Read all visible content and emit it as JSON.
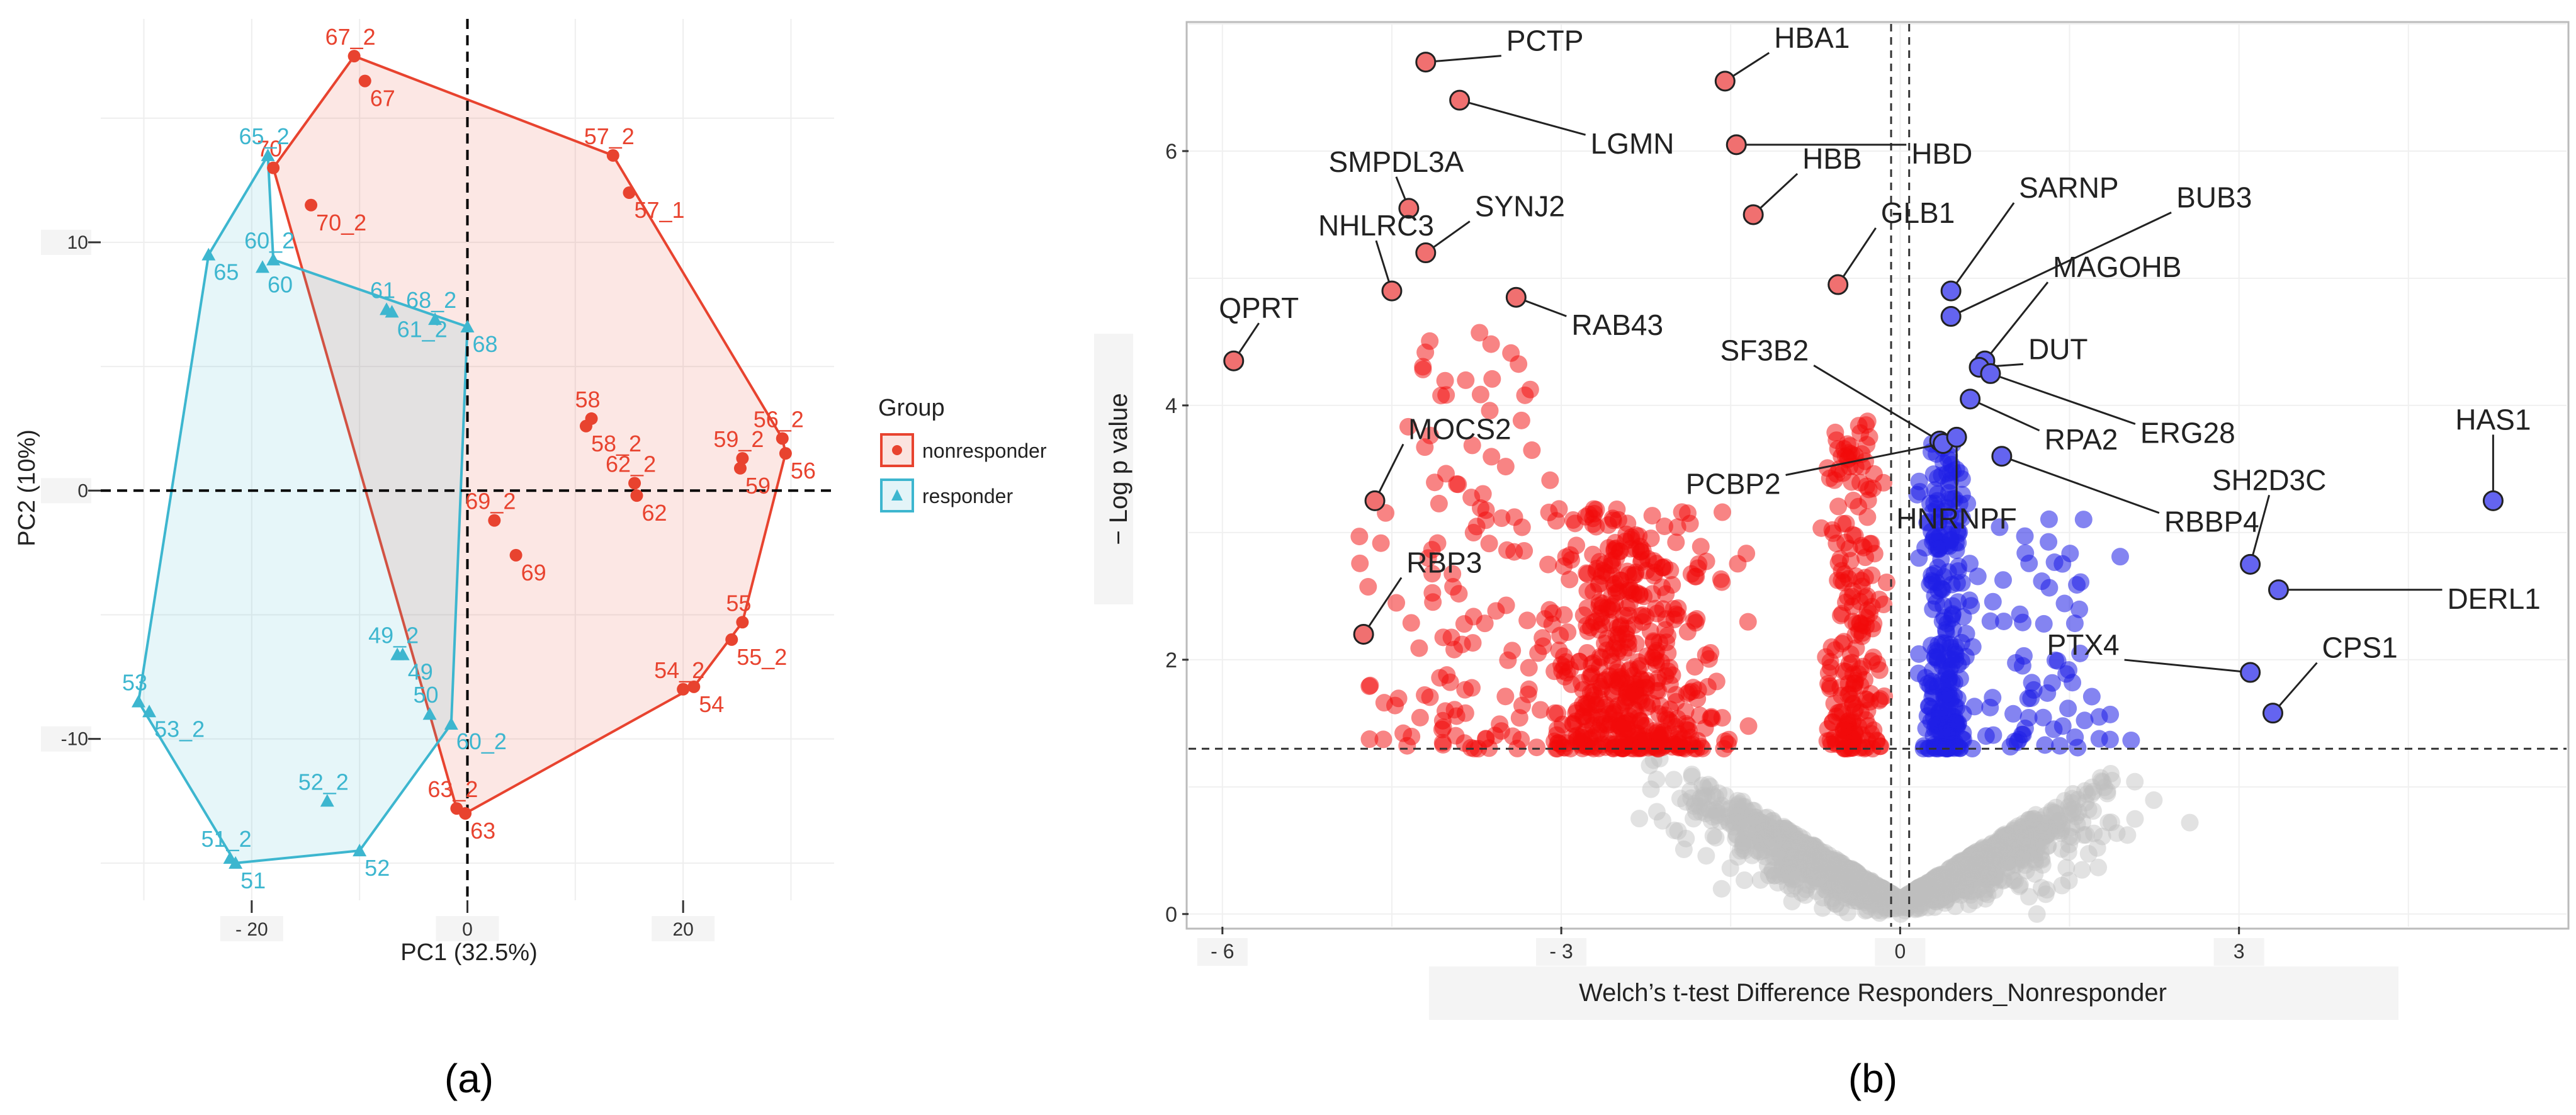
{
  "chart_data": [
    {
      "type": "scatter",
      "panel_label": "(a)",
      "xlabel": "PC1 (32.5%)",
      "ylabel": "PC2 (10%)",
      "xlim": [
        -34,
        34
      ],
      "ylim": [
        -16.5,
        19
      ],
      "x_ticks": [
        -20,
        0,
        20
      ],
      "y_ticks": [
        -10,
        0,
        10
      ],
      "x_tick_labels": [
        "- 20",
        "0",
        "20"
      ],
      "y_tick_labels": [
        "-10",
        "0",
        "10"
      ],
      "grid": true,
      "reference_lines": {
        "x": 0,
        "y": 0
      },
      "legend": {
        "title": "Group",
        "placement": "right",
        "entries": [
          "nonresponder",
          "responder"
        ]
      },
      "series": [
        {
          "name": "nonresponder",
          "color": "#E8432F",
          "marker": "circle",
          "points": [
            {
              "label": "67_2",
              "x": -10.5,
              "y": 17.5
            },
            {
              "label": "67",
              "x": -9.5,
              "y": 16.5
            },
            {
              "label": "70",
              "x": -18,
              "y": 13
            },
            {
              "label": "70_2",
              "x": -14.5,
              "y": 11.5
            },
            {
              "label": "57_2",
              "x": 13.5,
              "y": 13.5
            },
            {
              "label": "57_1",
              "x": 15,
              "y": 12
            },
            {
              "label": "58",
              "x": 11.5,
              "y": 2.9
            },
            {
              "label": "58_2",
              "x": 11,
              "y": 2.6
            },
            {
              "label": "62_2",
              "x": 15.5,
              "y": 0.3
            },
            {
              "label": "62",
              "x": 15.7,
              "y": -0.2
            },
            {
              "label": "59_2",
              "x": 25.5,
              "y": 1.3
            },
            {
              "label": "59",
              "x": 25.3,
              "y": 0.9
            },
            {
              "label": "56_2",
              "x": 29.2,
              "y": 2.1
            },
            {
              "label": "56",
              "x": 29.5,
              "y": 1.5
            },
            {
              "label": "69_2",
              "x": 2.5,
              "y": -1.2
            },
            {
              "label": "69",
              "x": 4.5,
              "y": -2.6
            },
            {
              "label": "55",
              "x": 25.5,
              "y": -5.3
            },
            {
              "label": "55_2",
              "x": 24.5,
              "y": -6.0
            },
            {
              "label": "54_2",
              "x": 20,
              "y": -8.0
            },
            {
              "label": "54",
              "x": 21,
              "y": -7.9
            },
            {
              "label": "63_2",
              "x": -1,
              "y": -12.8
            },
            {
              "label": "63",
              "x": -0.2,
              "y": -13.0
            }
          ]
        },
        {
          "name": "responder",
          "color": "#3DB6CF",
          "marker": "triangle",
          "points": [
            {
              "label": "65_2",
              "x": -18.5,
              "y": 13.5
            },
            {
              "label": "65",
              "x": -24,
              "y": 9.5
            },
            {
              "label": "60_2",
              "x": -18,
              "y": 9.3
            },
            {
              "label": "60",
              "x": -19,
              "y": 9.0
            },
            {
              "label": "61",
              "x": -7.5,
              "y": 7.3
            },
            {
              "label": "61_2",
              "x": -7,
              "y": 7.2
            },
            {
              "label": "68_2",
              "x": -3,
              "y": 6.9
            },
            {
              "label": "68",
              "x": 0,
              "y": 6.6
            },
            {
              "label": "49_2",
              "x": -6.5,
              "y": -6.6
            },
            {
              "label": "49",
              "x": -6,
              "y": -6.6
            },
            {
              "label": "50",
              "x": -3.5,
              "y": -9.0
            },
            {
              "label": "60_2",
              "x": -1.5,
              "y": -9.4
            },
            {
              "label": "53",
              "x": -30.5,
              "y": -8.5
            },
            {
              "label": "53_2",
              "x": -29.5,
              "y": -8.9
            },
            {
              "label": "52_2",
              "x": -13,
              "y": -12.5
            },
            {
              "label": "52",
              "x": -10,
              "y": -14.5
            },
            {
              "label": "51_2",
              "x": -22,
              "y": -14.8
            },
            {
              "label": "51",
              "x": -21.5,
              "y": -15.0
            }
          ]
        }
      ],
      "hulls": {
        "nonresponder": [
          [
            -10.5,
            17.5
          ],
          [
            13.5,
            13.5
          ],
          [
            29.2,
            2.1
          ],
          [
            29.5,
            1.5
          ],
          [
            25.5,
            -5.3
          ],
          [
            21,
            -7.9
          ],
          [
            -0.2,
            -13.0
          ],
          [
            -1,
            -12.8
          ],
          [
            -18,
            13
          ]
        ],
        "responder": [
          [
            -24,
            9.5
          ],
          [
            -18.5,
            13.5
          ],
          [
            -18,
            9.3
          ],
          [
            0,
            6.6
          ],
          [
            -1.5,
            -9.4
          ],
          [
            -10,
            -14.5
          ],
          [
            -21.5,
            -15.0
          ],
          [
            -30.5,
            -8.5
          ]
        ]
      },
      "colors": {
        "nonresponder": "#E8432F",
        "responder": "#3DB6CF"
      }
    },
    {
      "type": "scatter",
      "panel_label": "(b)",
      "xlabel": "Welch’s t-test Difference Responders_Nonresponder",
      "ylabel": "− Log p value",
      "xlim": [
        -6.3,
        5.9
      ],
      "ylim": [
        -0.1,
        7.0
      ],
      "x_ticks": [
        -6,
        -3,
        0,
        3
      ],
      "y_ticks": [
        0,
        2,
        4,
        6
      ],
      "x_tick_labels": [
        "- 6",
        "- 3",
        "0",
        "3"
      ],
      "y_tick_labels": [
        "0",
        "2",
        "4",
        "6"
      ],
      "grid": true,
      "reference_lines": {
        "x": [
          -0.08,
          0.08
        ],
        "y": 1.3
      },
      "colors": {
        "down": "#F20A0A",
        "up": "#1F1FE6",
        "ns": "#BEBEBE"
      },
      "labeled_genes": [
        {
          "label": "PCTP",
          "x": -4.2,
          "y": 6.7,
          "group": "down"
        },
        {
          "label": "LGMN",
          "x": -3.9,
          "y": 6.4,
          "group": "down"
        },
        {
          "label": "SMPDL3A",
          "x": -4.35,
          "y": 5.55,
          "group": "down"
        },
        {
          "label": "SYNJ2",
          "x": -4.2,
          "y": 5.2,
          "group": "down"
        },
        {
          "label": "NHLRC3",
          "x": -4.5,
          "y": 4.9,
          "group": "down"
        },
        {
          "label": "RAB43",
          "x": -3.4,
          "y": 4.85,
          "group": "down"
        },
        {
          "label": "QPRT",
          "x": -5.9,
          "y": 4.35,
          "group": "down"
        },
        {
          "label": "MOCS2",
          "x": -4.65,
          "y": 3.25,
          "group": "down"
        },
        {
          "label": "RBP3",
          "x": -4.75,
          "y": 2.2,
          "group": "down"
        },
        {
          "label": "HBA1",
          "x": -1.55,
          "y": 6.55,
          "group": "down"
        },
        {
          "label": "HBD",
          "x": -1.45,
          "y": 6.05,
          "group": "down"
        },
        {
          "label": "HBB",
          "x": -1.3,
          "y": 5.5,
          "group": "down"
        },
        {
          "label": "GLB1",
          "x": -0.55,
          "y": 4.95,
          "group": "down"
        },
        {
          "label": "SARNP",
          "x": 0.45,
          "y": 4.9,
          "group": "up"
        },
        {
          "label": "BUB3",
          "x": 0.45,
          "y": 4.7,
          "group": "up"
        },
        {
          "label": "MAGOHB",
          "x": 0.75,
          "y": 4.35,
          "group": "up"
        },
        {
          "label": "DUT",
          "x": 0.7,
          "y": 4.3,
          "group": "up"
        },
        {
          "label": "ERG28",
          "x": 0.8,
          "y": 4.25,
          "group": "up"
        },
        {
          "label": "SF3B2",
          "x": 0.35,
          "y": 3.72,
          "group": "up"
        },
        {
          "label": "PCBP2",
          "x": 0.38,
          "y": 3.7,
          "group": "up"
        },
        {
          "label": "RPA2",
          "x": 0.62,
          "y": 4.05,
          "group": "up"
        },
        {
          "label": "HNRNPF",
          "x": 0.5,
          "y": 3.75,
          "group": "up"
        },
        {
          "label": "RBBP4",
          "x": 0.9,
          "y": 3.6,
          "group": "up"
        },
        {
          "label": "HAS1",
          "x": 5.25,
          "y": 3.25,
          "group": "up"
        },
        {
          "label": "SH2D3C",
          "x": 3.1,
          "y": 2.75,
          "group": "up"
        },
        {
          "label": "DERL1",
          "x": 3.35,
          "y": 2.55,
          "group": "up"
        },
        {
          "label": "PTX4",
          "x": 3.1,
          "y": 1.9,
          "group": "up"
        },
        {
          "label": "CPS1",
          "x": 3.3,
          "y": 1.58,
          "group": "up"
        }
      ]
    }
  ]
}
